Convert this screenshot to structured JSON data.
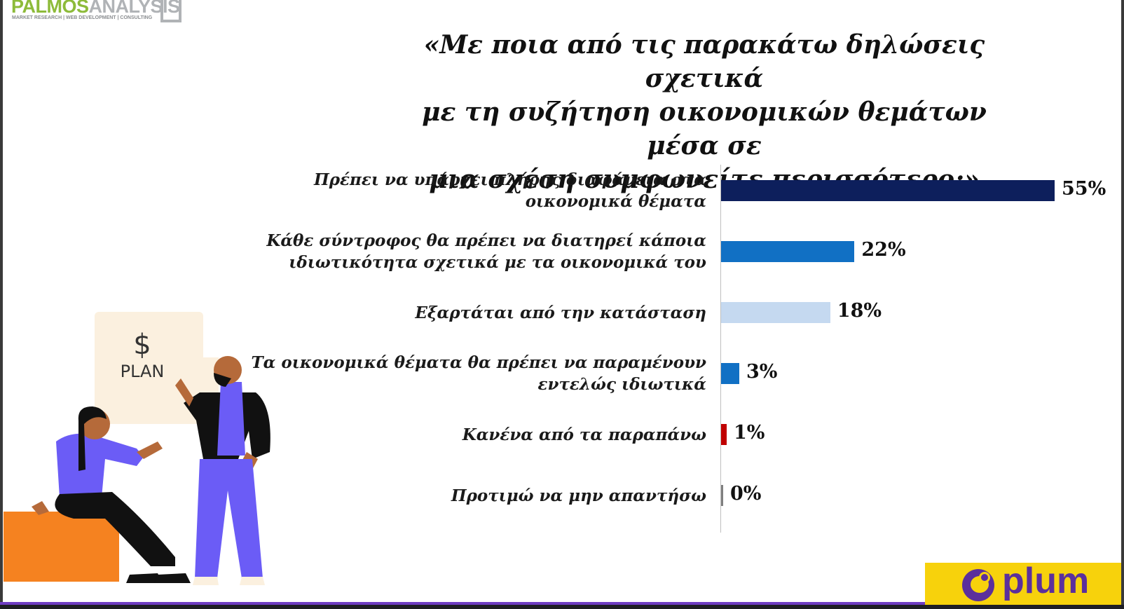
{
  "logo": {
    "name_part1": "PALMOS",
    "name_part2": "ANALYSIS",
    "tagline": "MARKET RESEARCH | WEB DEVELOPMENT | CONSULTING"
  },
  "title": "«Με ποια από τις παρακάτω δηλώσεις σχετικά\nμε τη συζήτηση οικονομικών θεμάτων μέσα σε\nμια σχέση συμφωνείτε περισσότερο;»",
  "illustration": {
    "sign_symbol": "$",
    "sign_text": "PLAN"
  },
  "brand": {
    "name": "plum",
    "color": "#5b2f9c",
    "background": "#f7d20c"
  },
  "chart_data": {
    "type": "bar",
    "orientation": "horizontal",
    "title": "«Με ποια από τις παρακάτω δηλώσεις σχετικά με τη συζήτηση οικονομικών θεμάτων μέσα σε μια σχέση συμφωνείτε περισσότερο;»",
    "xlim": [
      0,
      55
    ],
    "grid": false,
    "categories": [
      "Πρέπει να υπάρχει πλήρης διαφάνεια στα\nοικονομικά θέματα",
      "Κάθε σύντροφος θα πρέπει να διατηρεί κάποια\nιδιωτικότητα σχετικά με τα οικονομικά του",
      "Εξαρτάται από την κατάσταση",
      "Τα οικονομικά θέματα θα πρέπει να παραμένουν\nεντελώς ιδιωτικά",
      "Κανένα από τα παραπάνω",
      "Προτιμώ να μην απαντήσω"
    ],
    "values": [
      55,
      22,
      18,
      3,
      1,
      0
    ],
    "value_labels": [
      "55%",
      "22%",
      "18%",
      "3%",
      "1%",
      "0%"
    ],
    "colors": [
      "#0d1f5c",
      "#1170c4",
      "#c5d9f0",
      "#1170c4",
      "#c00000",
      "#7f7f7f"
    ]
  }
}
